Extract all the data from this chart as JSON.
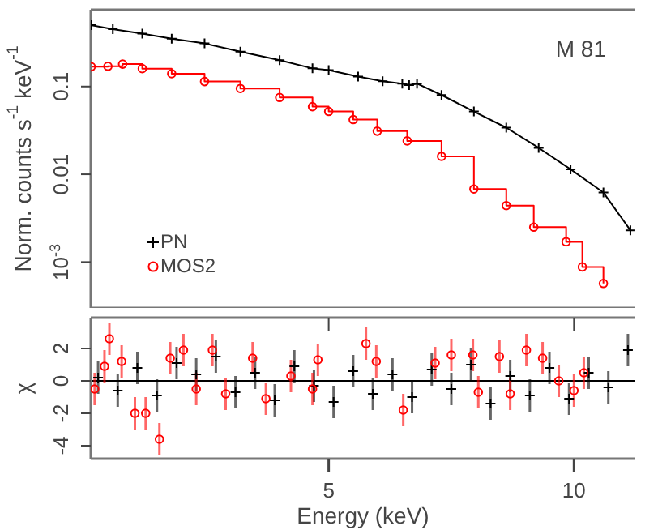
{
  "chart_data": [
    {
      "type": "line",
      "ylabel": "Norm. counts s$^{-1}$ keV$^{-1}$",
      "annotations": [
        "M 81"
      ],
      "log": "y",
      "xlim": [
        0.15,
        11.25
      ],
      "ylim": [
        0.0003,
        0.75
      ],
      "yticks": [
        0.1,
        0.01,
        {
          "value": 0.001,
          "label": "10$^{-3}$"
        }
      ],
      "tick_labels": "y",
      "legend": "bottom left",
      "grid": false,
      "series": [
        {
          "name": "PN",
          "color": "#000000",
          "marker": "cross",
          "x": [
            0.15,
            0.6,
            1.2,
            1.8,
            2.47,
            3.2,
            4.0,
            4.67,
            5.0,
            5.6,
            6.1,
            6.5,
            6.64,
            6.8,
            7.3,
            7.96,
            8.62,
            9.28,
            9.93,
            10.6,
            11.15
          ],
          "values": [
            0.5,
            0.45,
            0.4,
            0.35,
            0.31,
            0.25,
            0.2,
            0.161,
            0.154,
            0.13,
            0.115,
            0.108,
            0.104,
            0.108,
            0.08,
            0.052,
            0.034,
            0.02,
            0.0114,
            0.0062,
            0.0023
          ]
        },
        {
          "name": "MOS2",
          "color": "#ff0000",
          "type": "step",
          "marker": "circle",
          "x": [
            0.16,
            0.5,
            0.8,
            1.2,
            1.8,
            2.47,
            3.2,
            4.0,
            4.67,
            5.0,
            5.5,
            5.99,
            6.6,
            7.3,
            7.96,
            8.62,
            9.18,
            9.84,
            10.17,
            10.6
          ],
          "values": [
            0.168,
            0.17,
            0.18,
            0.16,
            0.14,
            0.114,
            0.095,
            0.075,
            0.059,
            0.052,
            0.042,
            0.031,
            0.024,
            0.016,
            0.0068,
            0.0044,
            0.0025,
            0.0017,
            0.00088,
            0.00057
          ]
        }
      ]
    },
    {
      "type": "scatter",
      "xlabel": "Energy (keV)",
      "ylabel": "χ",
      "xlim": [
        0.15,
        11.25
      ],
      "xticks": [
        5,
        10
      ],
      "ylim": [
        -4.8,
        3.9
      ],
      "yticks": [
        -4,
        -2,
        0,
        2
      ],
      "grid": false,
      "ref_lines": [
        {
          "axis": "y",
          "value": 0,
          "color": "#000000"
        }
      ],
      "series": [
        {
          "color": "#000000",
          "marker": "cross",
          "x": [
            0.3,
            0.7,
            1.1,
            1.5,
            1.9,
            2.3,
            2.7,
            3.1,
            3.5,
            3.9,
            4.3,
            4.7,
            5.1,
            5.5,
            5.9,
            6.3,
            6.7,
            7.1,
            7.5,
            7.9,
            8.3,
            8.7,
            9.1,
            9.5,
            9.9,
            10.3,
            10.7,
            11.1
          ],
          "values": [
            0.2,
            -0.6,
            0.8,
            -0.9,
            1.1,
            0.4,
            1.5,
            -0.7,
            0.5,
            -1.2,
            0.9,
            -0.3,
            -1.3,
            0.6,
            -0.8,
            0.4,
            -1.0,
            0.7,
            -0.5,
            1.0,
            -1.4,
            0.3,
            -0.9,
            0.8,
            -1.1,
            0.5,
            -0.4,
            1.9
          ],
          "errors": [
            1,
            1,
            1,
            1,
            1,
            1,
            1,
            1,
            1,
            1,
            1,
            1,
            1,
            1,
            1,
            1,
            1,
            1,
            1,
            1,
            1,
            1,
            1,
            1,
            1,
            1,
            1,
            1
          ]
        },
        {
          "color": "#ff0000",
          "marker": "circle",
          "x": [
            0.23,
            0.43,
            0.53,
            0.78,
            1.05,
            1.27,
            1.55,
            1.77,
            2.04,
            2.3,
            2.63,
            2.9,
            3.45,
            3.72,
            4.23,
            4.67,
            4.78,
            5.76,
            5.97,
            6.52,
            7.17,
            7.5,
            7.94,
            8.05,
            8.48,
            8.7,
            9.03,
            9.36,
            9.69,
            10.0,
            10.2
          ],
          "values": [
            -0.5,
            0.9,
            2.6,
            1.2,
            -2.0,
            -2.0,
            -3.6,
            1.4,
            1.9,
            -0.5,
            1.9,
            -0.8,
            1.4,
            -1.1,
            0.3,
            -0.5,
            1.3,
            2.3,
            1.2,
            -1.8,
            1.1,
            1.6,
            1.6,
            -0.7,
            1.5,
            -0.8,
            1.9,
            1.4,
            0,
            -0.6,
            0.5
          ],
          "errors": [
            1,
            1,
            1,
            1,
            1,
            1,
            1,
            1,
            1,
            1,
            1,
            1,
            1,
            1,
            1,
            1,
            1,
            1,
            1,
            1,
            1,
            1,
            1,
            1,
            1,
            1,
            1,
            1,
            1,
            1,
            1
          ]
        }
      ]
    }
  ]
}
